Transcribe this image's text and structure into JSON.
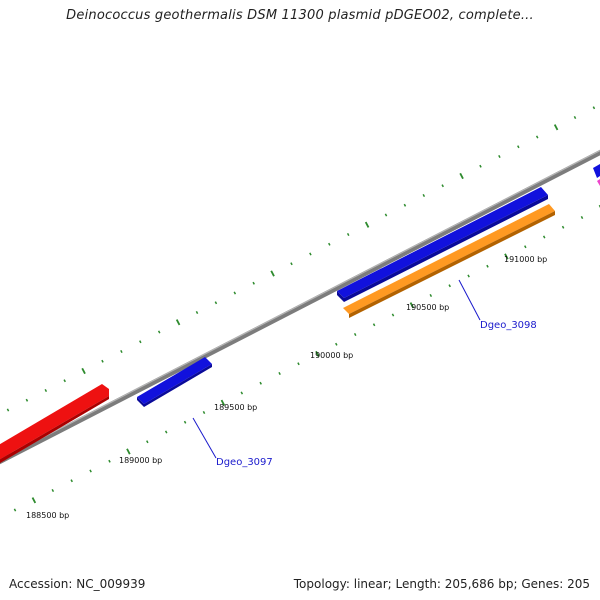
{
  "title": "Deinococcus geothermalis DSM 11300 plasmid pDGEO02, complete...",
  "footer": {
    "accession": "Accession: NC_009939",
    "summary": "Topology: linear; Length: 205,686 bp; Genes: 205"
  },
  "ruler": {
    "tick_labels": [
      "188500 bp",
      "189000 bp",
      "189500 bp",
      "190000 bp",
      "190500 bp",
      "191000 bp"
    ]
  },
  "genes": [
    {
      "label": "",
      "color": "#ee1111",
      "strand": "forward"
    },
    {
      "label": "Dgeo_3097",
      "color": "#1111dd",
      "strand": "forward"
    },
    {
      "label": "Dgeo_3098",
      "color": "#1111dd",
      "strand": "forward"
    },
    {
      "label": "",
      "color": "#ff9922",
      "strand": "reverse"
    },
    {
      "label": "",
      "color": "#1111dd",
      "strand": "forward"
    },
    {
      "label": "",
      "color": "#ee44cc",
      "strand": "forward"
    }
  ],
  "colors": {
    "backbone": "#8a8a8a",
    "tick": "#2e8b2e",
    "label_line": "#1a1acc"
  }
}
